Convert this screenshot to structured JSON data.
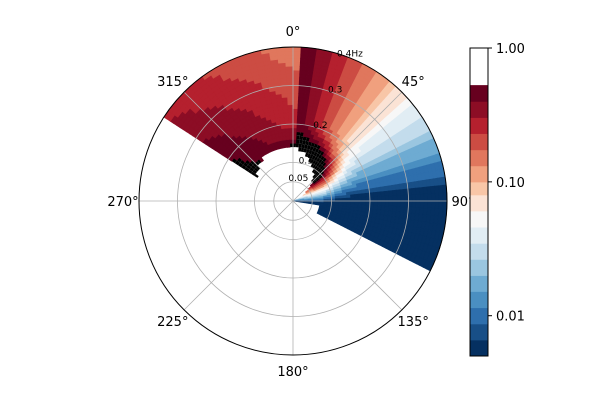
{
  "chart_data": {
    "type": "polar filled contour",
    "angle_labels": [
      {
        "deg": 0,
        "text": "0°"
      },
      {
        "deg": 45,
        "text": "45°"
      },
      {
        "deg": 90,
        "text": "90°"
      },
      {
        "deg": 135,
        "text": "135°"
      },
      {
        "deg": 180,
        "text": "180°"
      },
      {
        "deg": 225,
        "text": "225°"
      },
      {
        "deg": 270,
        "text": "270°"
      },
      {
        "deg": 315,
        "text": "315°"
      }
    ],
    "radial_ticks": [
      {
        "value": 0.05,
        "text": "0.05"
      },
      {
        "value": 0.1,
        "text": "0.1"
      },
      {
        "value": 0.2,
        "text": "0.2"
      },
      {
        "value": 0.3,
        "text": "0.3"
      },
      {
        "value": 0.4,
        "text": "0.4Hz"
      }
    ],
    "r_range": [
      0.0,
      0.4
    ],
    "theta_direction": "clockwise",
    "theta_zero": "top",
    "grid": true,
    "colorbar": {
      "scale": "log",
      "range": [
        0.005,
        1.0
      ],
      "ticks": [
        {
          "value": 1.0,
          "text": "1.00"
        },
        {
          "value": 0.1,
          "text": "0.10"
        },
        {
          "value": 0.01,
          "text": "0.01"
        }
      ],
      "levels": [
        0.005,
        0.0066,
        0.0087,
        0.0115,
        0.0152,
        0.02,
        0.0264,
        0.0348,
        0.046,
        0.0607,
        0.08,
        0.1,
        0.132,
        0.174,
        0.23,
        0.303,
        0.4,
        0.528,
        0.697,
        1.0
      ],
      "colors": [
        "#053061",
        "#184f87",
        "#2e6fad",
        "#4a8fc1",
        "#6eabd2",
        "#9ac6e0",
        "#c3dcec",
        "#e1edf4",
        "#f7f7f7",
        "#fbe3d5",
        "#f8c6a7",
        "#f0a07e",
        "#e0775d",
        "#cc4c43",
        "#b5202e",
        "#8c0d25",
        "#67001f"
      ]
    },
    "field_description_values": {
      "theta_min_deg": -57,
      "theta_max_deg": 117,
      "peak_theta_deg": 30,
      "peak_r": 0.09,
      "high_side": "low angles",
      "low_side": "high angles"
    }
  }
}
